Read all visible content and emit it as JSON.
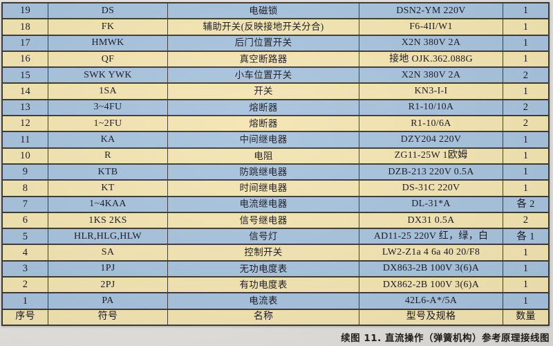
{
  "table": {
    "headers": [
      "序号",
      "符号",
      "名称",
      "型号及规格",
      "数量"
    ],
    "rows": [
      {
        "no": "19",
        "symbol": "DS",
        "name": "电磁锁",
        "model": "DSN2-YM 220V",
        "qty": "1"
      },
      {
        "no": "18",
        "symbol": "FK",
        "name": "辅助开关(反映接地开关分合)",
        "model": "F6-4II/W1",
        "qty": "1"
      },
      {
        "no": "17",
        "symbol": "HMWK",
        "name": "后门位置开关",
        "model": "X2N 380V 2A",
        "qty": "1"
      },
      {
        "no": "16",
        "symbol": "QF",
        "name": "真空断路器",
        "model": "接地 OJK.362.088G",
        "qty": "1"
      },
      {
        "no": "15",
        "symbol": "SWK YWK",
        "name": "小车位置开关",
        "model": "X2N 380V 2A",
        "qty": "2"
      },
      {
        "no": "14",
        "symbol": "1SA",
        "name": "开关",
        "model": "KN3-I-I",
        "qty": "1"
      },
      {
        "no": "13",
        "symbol": "3~4FU",
        "name": "熔断器",
        "model": "R1-10/10A",
        "qty": "2"
      },
      {
        "no": "12",
        "symbol": "1~2FU",
        "name": "熔断器",
        "model": "R1-10/6A",
        "qty": "2"
      },
      {
        "no": "11",
        "symbol": "KA",
        "name": "中间继电器",
        "model": "DZY204 220V",
        "qty": "1"
      },
      {
        "no": "10",
        "symbol": "R",
        "name": "电阻",
        "model": "ZG11-25W 1欧姆",
        "qty": "1"
      },
      {
        "no": "9",
        "symbol": "KTB",
        "name": "防跳继电器",
        "model": "DZB-213 220V 0.5A",
        "qty": "1"
      },
      {
        "no": "8",
        "symbol": "KT",
        "name": "时间继电器",
        "model": "DS-31C 220V",
        "qty": "1"
      },
      {
        "no": "7",
        "symbol": "1~4KAA",
        "name": "电流继电器",
        "model": "DL-31*A",
        "qty": "各 2"
      },
      {
        "no": "6",
        "symbol": "1KS 2KS",
        "name": "信号继电器",
        "model": "DX31 0.5A",
        "qty": "2"
      },
      {
        "no": "5",
        "symbol": "HLR,HLG,HLW",
        "name": "信号灯",
        "model": "AD11-25 220V 红，绿，白",
        "qty": "各 1"
      },
      {
        "no": "4",
        "symbol": "SA",
        "name": "控制开关",
        "model": "LW2-Z1a 4 6a 40 20/F8",
        "qty": "1"
      },
      {
        "no": "3",
        "symbol": "1PJ",
        "name": "无功电度表",
        "model": "DX863-2B 100V 3(6)A",
        "qty": "1"
      },
      {
        "no": "2",
        "symbol": "2PJ",
        "name": "有功电度表",
        "model": "DX862-2B 100V 3(6)A",
        "qty": "1"
      },
      {
        "no": "1",
        "symbol": "PA",
        "name": "电流表",
        "model": "42L6-A*/5A",
        "qty": "1"
      }
    ]
  },
  "caption": "续图 11. 直流操作（弹簧机构）参考原理接线图",
  "colors": {
    "row_blue": "#a7c2dd",
    "row_cream": "#f3e4b0",
    "border": "#3a3832",
    "background": "#e4e3df",
    "text": "#15151f"
  }
}
